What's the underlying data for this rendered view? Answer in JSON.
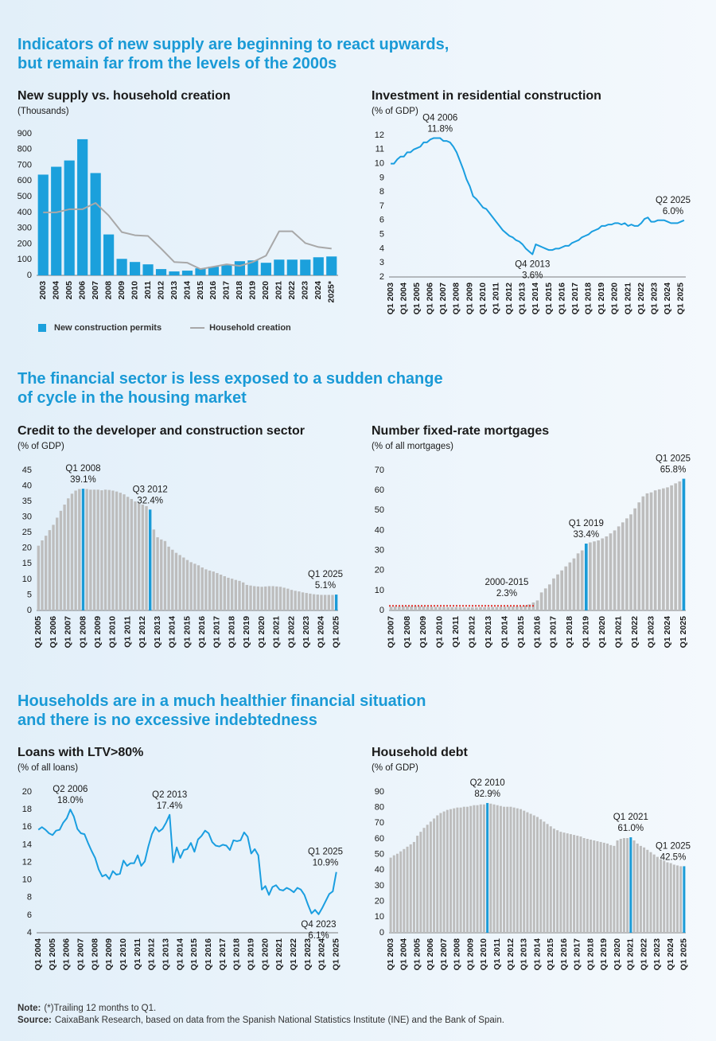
{
  "sections": [
    {
      "title_lines": [
        "Indicators of new supply are beginning to react upwards,",
        "but remain far from the levels of the 2000s"
      ]
    },
    {
      "title_lines": [
        "The financial sector is less exposed to a sudden change",
        "of cycle in the housing market"
      ]
    },
    {
      "title_lines": [
        "Households are in a much healthier financial situation",
        "and there is no excessive indebtedness"
      ]
    }
  ],
  "footer": {
    "note_label": "Note:",
    "note": "(*)Trailing 12 months to Q1.",
    "source_label": "Source:",
    "source": "CaixaBank Research, based on data from the Spanish National Statistics Institute (INE) and the Bank of Spain."
  },
  "chart_data": [
    {
      "type": "bar_line",
      "title": "New supply vs. household creation",
      "subtitle": "(Thousands)",
      "categories": [
        "2003",
        "2004",
        "2005",
        "2006",
        "2007",
        "2008",
        "2009",
        "2010",
        "2011",
        "2012",
        "2013",
        "2014",
        "2015",
        "2016",
        "2017",
        "2018",
        "2019",
        "2020",
        "2021",
        "2022",
        "2023",
        "2024",
        "2025*"
      ],
      "series": [
        {
          "name": "New construction permits",
          "type": "bar",
          "color": "#1ba0dc",
          "values": [
            640,
            690,
            730,
            865,
            650,
            260,
            105,
            85,
            70,
            40,
            25,
            30,
            45,
            55,
            65,
            90,
            95,
            80,
            100,
            100,
            100,
            115,
            120
          ]
        },
        {
          "name": "Household creation",
          "type": "line",
          "color": "#a8a8a8",
          "values": [
            400,
            400,
            420,
            420,
            460,
            380,
            275,
            255,
            250,
            170,
            85,
            80,
            40,
            55,
            70,
            60,
            85,
            125,
            280,
            280,
            205,
            180,
            170
          ]
        }
      ],
      "ylim": [
        0,
        900
      ],
      "yticks": [
        0,
        100,
        200,
        300,
        400,
        500,
        600,
        700,
        800,
        900
      ],
      "grid": false
    },
    {
      "type": "line",
      "title": "Investment in residential construction",
      "subtitle": "(% of GDP)",
      "color": "#1a9ee0",
      "categories": [
        "Q1 2003",
        null,
        null,
        null,
        "Q1 2004",
        null,
        null,
        null,
        "Q1 2005",
        null,
        null,
        null,
        "Q1 2006",
        null,
        null,
        null,
        "Q1 2007",
        null,
        null,
        null,
        "Q1 2008",
        null,
        null,
        null,
        "Q1 2009",
        null,
        null,
        null,
        "Q1 2010",
        null,
        null,
        null,
        "Q1 2011",
        null,
        null,
        null,
        "Q1 2012",
        null,
        null,
        null,
        "Q1 2013",
        null,
        null,
        null,
        "Q1 2014",
        null,
        null,
        null,
        "Q1 2015",
        null,
        null,
        null,
        "Q1 2016",
        null,
        null,
        null,
        "Q1 2017",
        null,
        null,
        null,
        "Q1 2018",
        null,
        null,
        null,
        "Q1 2019",
        null,
        null,
        null,
        "Q1 2020",
        null,
        null,
        null,
        "Q1 2021",
        null,
        null,
        null,
        "Q1 2022",
        null,
        null,
        null,
        "Q1 2023",
        null,
        null,
        null,
        "Q1 2024",
        null,
        null,
        null,
        "Q1 2025",
        null
      ],
      "values": [
        10.0,
        10.0,
        10.3,
        10.5,
        10.5,
        10.8,
        10.8,
        11.0,
        11.1,
        11.2,
        11.5,
        11.5,
        11.7,
        11.8,
        11.8,
        11.8,
        11.6,
        11.6,
        11.5,
        11.2,
        10.8,
        10.2,
        9.6,
        8.9,
        8.4,
        7.7,
        7.5,
        7.2,
        6.9,
        6.8,
        6.5,
        6.2,
        5.9,
        5.6,
        5.3,
        5.1,
        4.9,
        4.8,
        4.6,
        4.5,
        4.3,
        4.0,
        3.8,
        3.6,
        4.3,
        4.2,
        4.1,
        4.0,
        3.9,
        3.9,
        4.0,
        4.0,
        4.1,
        4.2,
        4.2,
        4.4,
        4.5,
        4.6,
        4.8,
        4.9,
        5.0,
        5.2,
        5.3,
        5.4,
        5.6,
        5.6,
        5.7,
        5.7,
        5.8,
        5.8,
        5.7,
        5.8,
        5.6,
        5.7,
        5.6,
        5.6,
        5.8,
        6.1,
        6.2,
        5.9,
        5.9,
        6.0,
        6.0,
        6.0,
        5.9,
        5.8,
        5.8,
        5.8,
        5.9,
        6.0
      ],
      "annotations": [
        {
          "period": "Q4 2006",
          "value": 11.8,
          "label": "11.8%"
        },
        {
          "period": "Q4 2013",
          "value": 3.6,
          "label": "3.6%"
        },
        {
          "period": "Q2 2025",
          "value": 6.0,
          "label": "6.0%"
        }
      ],
      "ylim": [
        2,
        12
      ],
      "yticks": [
        2,
        3,
        4,
        5,
        6,
        7,
        8,
        9,
        10,
        11,
        12
      ],
      "grid": false
    },
    {
      "type": "bar",
      "title": "Credit to the developer and construction sector",
      "subtitle": "(% of GDP)",
      "color": "#bdbdbd",
      "highlight_color": "#1a9bd7",
      "categories": [
        "Q1 2005",
        null,
        null,
        null,
        "Q1 2006",
        null,
        null,
        null,
        "Q1 2007",
        null,
        null,
        null,
        "Q1 2008",
        null,
        null,
        null,
        "Q1 2009",
        null,
        null,
        null,
        "Q1 2010",
        null,
        null,
        null,
        "Q1 2011",
        null,
        null,
        null,
        "Q1 2012",
        null,
        null,
        null,
        "Q1 2013",
        null,
        null,
        null,
        "Q1 2014",
        null,
        null,
        null,
        "Q1 2015",
        null,
        null,
        null,
        "Q1 2016",
        null,
        null,
        null,
        "Q1 2017",
        null,
        null,
        null,
        "Q1 2018",
        null,
        null,
        null,
        "Q1 2019",
        null,
        null,
        null,
        "Q1 2020",
        null,
        null,
        null,
        "Q1 2021",
        null,
        null,
        null,
        "Q1 2022",
        null,
        null,
        null,
        "Q1 2023",
        null,
        null,
        null,
        "Q1 2024",
        null,
        null,
        null,
        "Q1 2025"
      ],
      "values": [
        20.8,
        22.5,
        24,
        25.8,
        27.5,
        29.8,
        32,
        34,
        36,
        37.5,
        38.5,
        39,
        39.1,
        39,
        38.8,
        38.8,
        38.8,
        38.6,
        38.8,
        38.7,
        38.5,
        38.2,
        37.8,
        37.3,
        36.5,
        35.8,
        35,
        34.5,
        34,
        33.5,
        32.4,
        26,
        23.5,
        22.8,
        22.3,
        20.5,
        19.5,
        18.5,
        17.8,
        17,
        16.2,
        15.5,
        15,
        14.5,
        13.8,
        13.2,
        12.8,
        12.5,
        12,
        11.5,
        11,
        10.5,
        10.2,
        9.8,
        9.5,
        9,
        8.2,
        8,
        7.8,
        7.7,
        7.6,
        7.7,
        7.8,
        7.8,
        7.7,
        7.6,
        7.3,
        7,
        6.6,
        6.3,
        6.1,
        5.8,
        5.6,
        5.4,
        5.2,
        5.1,
        5,
        5,
        5,
        5,
        5.1
      ],
      "annotations": [
        {
          "period": "Q1 2008",
          "value": 39.1,
          "label": "39.1%"
        },
        {
          "period": "Q3 2012",
          "value": 32.4,
          "label": "32.4%"
        },
        {
          "period": "Q1 2025",
          "value": 5.1,
          "label": "5.1%"
        }
      ],
      "ylim": [
        0,
        45
      ],
      "yticks": [
        0,
        5,
        10,
        15,
        20,
        25,
        30,
        35,
        40,
        45
      ],
      "grid": false
    },
    {
      "type": "bar",
      "title": "Number fixed-rate mortgages",
      "subtitle": "(% of all mortgages)",
      "color": "#bdbdbd",
      "highlight_color": "#1a9bd7",
      "categories": [
        "Q1 2007",
        null,
        null,
        null,
        "Q1 2008",
        null,
        null,
        null,
        "Q1 2009",
        null,
        null,
        null,
        "Q1 2010",
        null,
        null,
        null,
        "Q1 2011",
        null,
        null,
        null,
        "Q1 2012",
        null,
        null,
        null,
        "Q1 2013",
        null,
        null,
        null,
        "Q1 2014",
        null,
        null,
        null,
        "Q1 2015",
        null,
        null,
        null,
        "Q1 2016",
        null,
        null,
        null,
        "Q1 2017",
        null,
        null,
        null,
        "Q1 2018",
        null,
        null,
        null,
        "Q1 2019",
        null,
        null,
        null,
        "Q1 2020",
        null,
        null,
        null,
        "Q1 2021",
        null,
        null,
        null,
        "Q1 2022",
        null,
        null,
        null,
        "Q1 2023",
        null,
        null,
        null,
        "Q1 2024",
        null,
        null,
        null,
        "Q1 2025"
      ],
      "values": [
        1.8,
        1.9,
        1.9,
        2.0,
        2.0,
        2.0,
        2.1,
        2.0,
        1.9,
        1.8,
        1.8,
        1.7,
        1.7,
        1.7,
        1.6,
        1.6,
        1.6,
        1.6,
        1.5,
        1.5,
        1.5,
        1.5,
        1.6,
        1.6,
        1.6,
        1.7,
        1.7,
        1.8,
        1.8,
        1.9,
        1.9,
        2.0,
        2.0,
        2.5,
        3.0,
        4.0,
        5.0,
        9.0,
        11.0,
        13.0,
        16,
        18,
        20,
        22,
        24,
        26,
        28.5,
        30,
        33.4,
        34,
        34.5,
        35,
        36,
        37,
        38.5,
        40,
        42,
        44,
        46,
        48,
        51,
        54,
        57,
        58.5,
        59,
        60,
        60.5,
        61,
        61.5,
        62.5,
        63.5,
        64.5,
        65.8
      ],
      "annotations": [
        {
          "period": "Q1 2019",
          "value": 33.4,
          "label": "33.4%"
        },
        {
          "period": "Q1 2025",
          "value": 65.8,
          "label": "65.8%"
        }
      ],
      "reference": {
        "label": "2000-2015",
        "value": 2.3,
        "value_label": "2.3%",
        "color": "#e0302a"
      },
      "ylim": [
        0,
        70
      ],
      "yticks": [
        0,
        10,
        20,
        30,
        40,
        50,
        60,
        70
      ],
      "grid": false
    },
    {
      "type": "line",
      "title": "Loans with LTV>80%",
      "subtitle": "(% of all loans)",
      "color": "#1a9ee0",
      "categories": [
        "Q1 2004",
        null,
        null,
        null,
        "Q1 2005",
        null,
        null,
        null,
        "Q1 2006",
        null,
        null,
        null,
        "Q1 2007",
        null,
        null,
        null,
        "Q1 2008",
        null,
        null,
        null,
        "Q1 2009",
        null,
        null,
        null,
        "Q1 2010",
        null,
        null,
        null,
        "Q1 2011",
        null,
        null,
        null,
        "Q1 2012",
        null,
        null,
        null,
        "Q1 2013",
        null,
        null,
        null,
        "Q1 2014",
        null,
        null,
        null,
        "Q1 2015",
        null,
        null,
        null,
        "Q1 2016",
        null,
        null,
        null,
        "Q1 2017",
        null,
        null,
        null,
        "Q1 2018",
        null,
        null,
        null,
        "Q1 2019",
        null,
        null,
        null,
        "Q1 2020",
        null,
        null,
        null,
        "Q1 2021",
        null,
        null,
        null,
        "Q1 2022",
        null,
        null,
        null,
        "Q1 2023",
        null,
        null,
        null,
        "Q1 2024",
        null,
        null,
        null,
        "Q1 2025"
      ],
      "values": [
        15.7,
        16,
        15.7,
        15.3,
        15.1,
        15.6,
        15.7,
        16.5,
        17,
        18.0,
        17.2,
        15.8,
        15.3,
        15.2,
        14.2,
        13.3,
        12.5,
        11.2,
        10.4,
        10.6,
        10.1,
        11,
        10.6,
        10.7,
        12.2,
        11.6,
        11.9,
        11.9,
        12.8,
        11.6,
        12.1,
        13.8,
        15.2,
        16,
        15.5,
        15.8,
        16.5,
        17.4,
        12,
        13.7,
        12.5,
        13.4,
        13.5,
        14.2,
        13.2,
        14.6,
        15,
        15.6,
        15.3,
        14.3,
        13.9,
        13.8,
        14,
        13.9,
        13.4,
        14.5,
        14.4,
        14.5,
        15.4,
        14.9,
        13,
        13.5,
        12.8,
        8.9,
        9.3,
        8.3,
        9.2,
        9.4,
        8.9,
        8.8,
        9.1,
        8.9,
        8.6,
        9.1,
        8.9,
        8.3,
        7.2,
        6.2,
        6.6,
        6.1,
        6.8,
        7.6,
        8.4,
        8.7,
        10.9
      ],
      "annotations": [
        {
          "period": "Q2 2006",
          "value": 18.0,
          "label": "18.0%"
        },
        {
          "period": "Q2 2013",
          "value": 17.4,
          "label": "17.4%"
        },
        {
          "period": "Q4 2023",
          "value": 6.1,
          "label": "6.1%"
        },
        {
          "period": "Q1 2025",
          "value": 10.9,
          "label": "10.9%"
        }
      ],
      "ylim": [
        4,
        20
      ],
      "yticks": [
        4,
        6,
        8,
        10,
        12,
        14,
        16,
        18,
        20
      ],
      "grid": false
    },
    {
      "type": "bar",
      "title": "Household debt",
      "subtitle": "(% of GDP)",
      "color": "#bdbdbd",
      "highlight_color": "#1a9bd7",
      "categories": [
        "Q1 2003",
        null,
        null,
        null,
        "Q1 2004",
        null,
        null,
        null,
        "Q1 2005",
        null,
        null,
        null,
        "Q1 2006",
        null,
        null,
        null,
        "Q1 2007",
        null,
        null,
        null,
        "Q1 2008",
        null,
        null,
        null,
        "Q1 2009",
        null,
        null,
        null,
        "Q1 2010",
        null,
        null,
        null,
        "Q1 2011",
        null,
        null,
        null,
        "Q1 2012",
        null,
        null,
        null,
        "Q1 2013",
        null,
        null,
        null,
        "Q1 2014",
        null,
        null,
        null,
        "Q1 2015",
        null,
        null,
        null,
        "Q1 2016",
        null,
        null,
        null,
        "Q1 2017",
        null,
        null,
        null,
        "Q1 2018",
        null,
        null,
        null,
        "Q1 2019",
        null,
        null,
        null,
        "Q1 2020",
        null,
        null,
        null,
        "Q1 2021",
        null,
        null,
        null,
        "Q1 2022",
        null,
        null,
        null,
        "Q1 2023",
        null,
        null,
        null,
        "Q1 2024",
        null,
        null,
        null,
        "Q1 2025"
      ],
      "values": [
        48,
        49.5,
        50.5,
        52,
        53.5,
        55,
        56.5,
        58,
        62,
        64.5,
        67,
        69,
        71,
        73,
        75,
        76.5,
        77.5,
        78.5,
        79,
        79.5,
        80,
        80,
        80.5,
        80.5,
        81,
        81.5,
        81.5,
        82,
        82,
        82.9,
        82.5,
        82,
        81.5,
        81,
        80.5,
        80.5,
        80.5,
        80,
        79.5,
        79,
        78,
        77,
        76,
        75,
        74,
        72.5,
        71,
        69.5,
        68,
        66.5,
        65.5,
        64.5,
        64,
        63.5,
        63,
        62.5,
        62,
        61.5,
        60.5,
        60,
        59.5,
        59,
        58.5,
        58,
        57.5,
        57,
        56,
        55.5,
        59,
        60,
        60.5,
        60.5,
        61.0,
        59,
        57,
        55.5,
        54.5,
        53,
        51.5,
        50,
        48.5,
        47,
        46,
        45,
        44.5,
        43.5,
        43,
        42.5,
        42.5
      ],
      "annotations": [
        {
          "period": "Q2 2010",
          "value": 82.9,
          "label": "82.9%"
        },
        {
          "period": "Q1 2021",
          "value": 61.0,
          "label": "61.0%"
        },
        {
          "period": "Q1 2025",
          "value": 42.5,
          "label": "42.5%"
        }
      ],
      "ylim": [
        0,
        90
      ],
      "yticks": [
        0,
        10,
        20,
        30,
        40,
        50,
        60,
        70,
        80,
        90
      ],
      "grid": false
    }
  ]
}
